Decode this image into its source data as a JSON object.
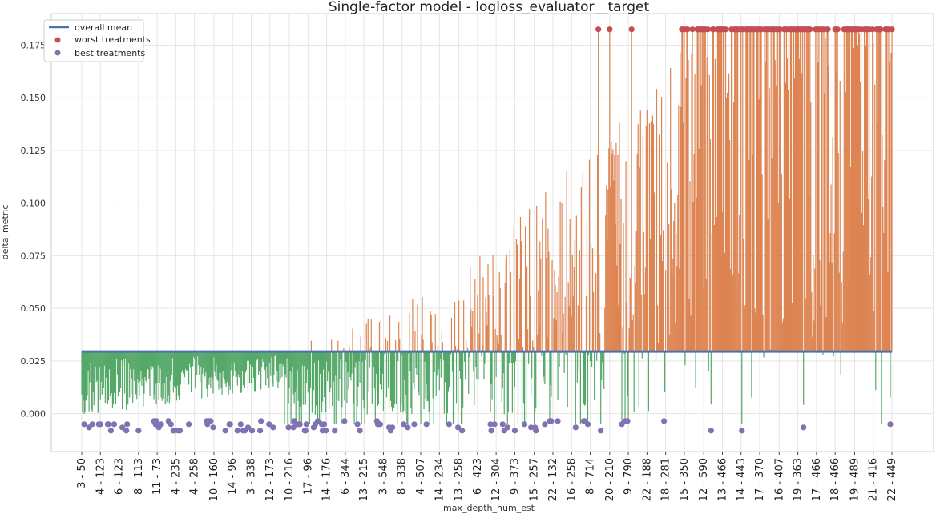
{
  "chart_data": {
    "type": "bar",
    "title": "Single-factor model - logloss_evaluator__target",
    "xlabel": "max_depth_num_est",
    "ylabel": "delta_metric",
    "ylim": [
      -0.018,
      0.19
    ],
    "yticks": [
      0.0,
      0.025,
      0.05,
      0.075,
      0.1,
      0.125,
      0.15,
      0.175
    ],
    "ytick_labels": [
      "0.000",
      "0.025",
      "0.050",
      "0.075",
      "0.100",
      "0.125",
      "0.150",
      "0.175"
    ],
    "overall_mean": 0.0295,
    "n_treatments": 1000,
    "x_tick_labels": [
      "3 - 50",
      "4 - 123",
      "6 - 123",
      "8 - 113",
      "11 - 73",
      "4 - 235",
      "4 - 258",
      "10 - 160",
      "14 - 96",
      "3 - 338",
      "12 - 173",
      "10 - 216",
      "17 - 96",
      "14 - 176",
      "6 - 344",
      "13 - 215",
      "3 - 548",
      "8 - 338",
      "4 - 507",
      "14 - 234",
      "13 - 258",
      "6 - 423",
      "12 - 304",
      "9 - 373",
      "15 - 257",
      "22 - 132",
      "16 - 258",
      "8 - 714",
      "20 - 210",
      "9 - 790",
      "22 - 188",
      "18 - 281",
      "15 - 350",
      "12 - 590",
      "13 - 466",
      "14 - 443",
      "17 - 370",
      "16 - 407",
      "19 - 363",
      "17 - 466",
      "18 - 466",
      "19 - 489",
      "21 - 416",
      "22 - 449"
    ],
    "worst_value": 0.1825,
    "best_value": -0.005,
    "grid": true,
    "legend_position": "top-left",
    "legend": [
      {
        "label": "overall mean",
        "kind": "line",
        "color": "#4c72b0"
      },
      {
        "label": "worst treatments",
        "kind": "marker",
        "color": "#c44e52"
      },
      {
        "label": "best treatments",
        "kind": "marker",
        "color": "#8172b3"
      }
    ],
    "colors": {
      "above_mean": "#dd8452",
      "below_mean": "#55a868",
      "mean_line": "#4c72b0",
      "worst": "#c44e52",
      "best": "#8172b3",
      "grid": "#e5e5e5"
    }
  }
}
